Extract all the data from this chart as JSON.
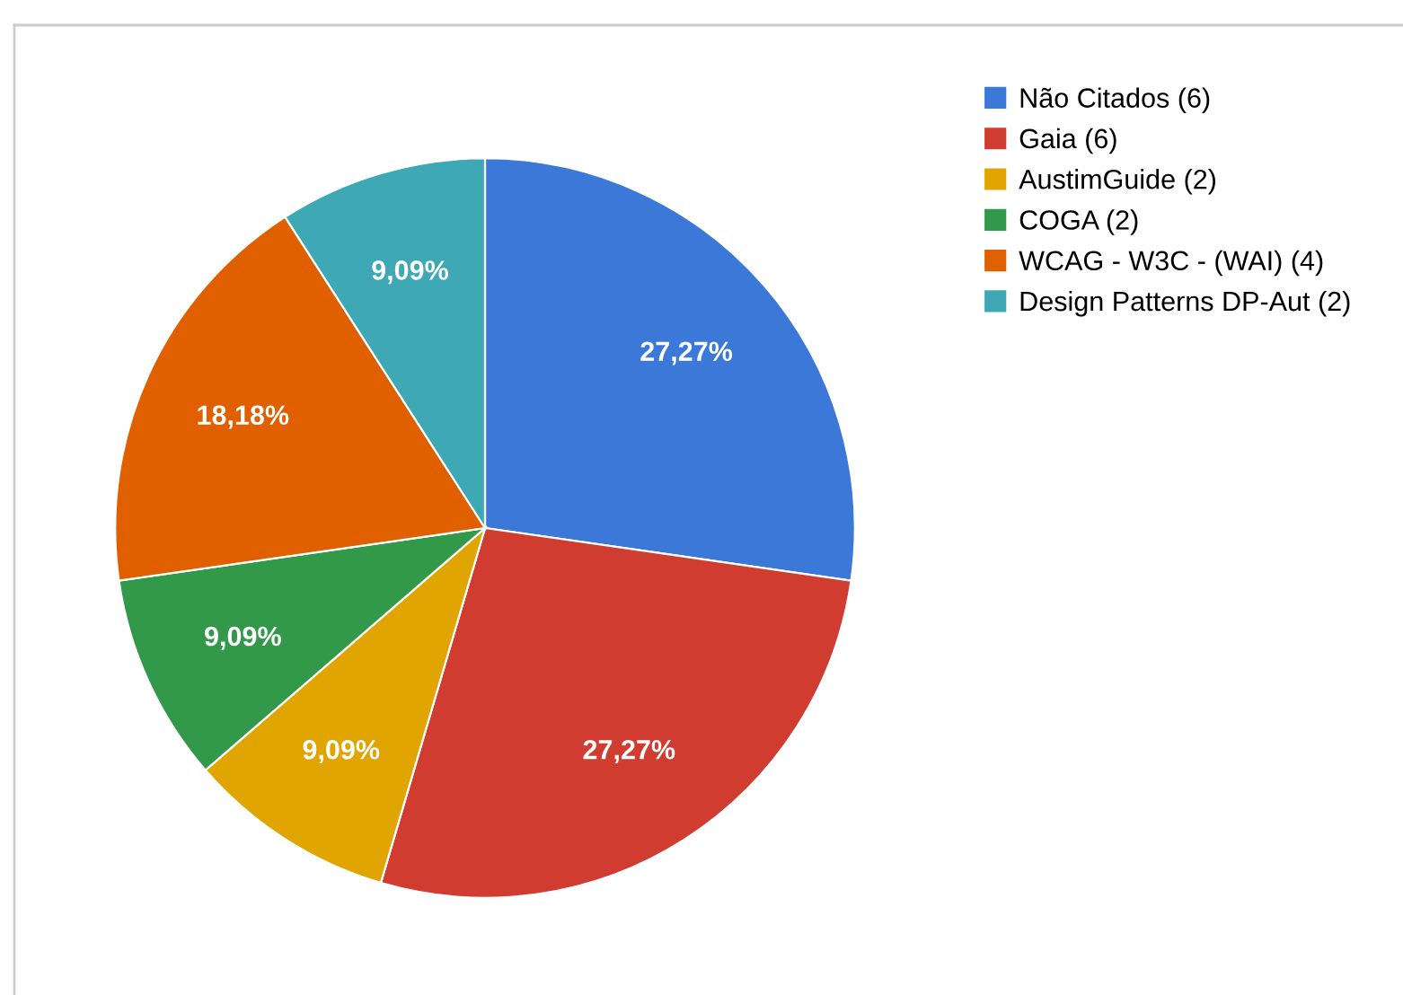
{
  "chart_data": {
    "type": "pie",
    "categories": [
      "Não Citados (6)",
      "Gaia (6)",
      "AustimGuide (2)",
      "COGA (2)",
      "WCAG - W3C - (WAI) (4)",
      "Design Patterns DP-Aut (2)"
    ],
    "values": [
      27.27,
      27.27,
      9.09,
      9.09,
      18.18,
      9.09
    ],
    "value_labels": [
      "27,27%",
      "27,27%",
      "9,09%",
      "9,09%",
      "18,18%",
      "9,09%"
    ],
    "colors": [
      "#3c78d8",
      "#d03c2f",
      "#e0a500",
      "#33994a",
      "#e06000",
      "#3fa8b5"
    ],
    "legend": "top right"
  }
}
